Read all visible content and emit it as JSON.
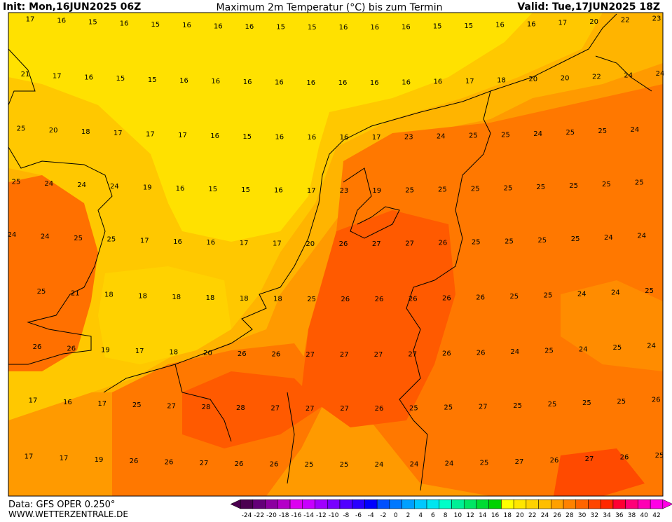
{
  "header": {
    "init": "Init: Mon,16JUN2025 06Z",
    "title": "Maximum 2m Temperatur (°C) bis zum Termin",
    "valid": "Valid: Tue,17JUN2025 18Z"
  },
  "footer": {
    "source": "Data: GFS OPER 0.250°",
    "site": "WWW.WETTERZENTRALE.DE"
  },
  "map": {
    "rows": [
      [
        17,
        16,
        15,
        16,
        15,
        16,
        16,
        16,
        15,
        15,
        16,
        16,
        16,
        15,
        15,
        16,
        16,
        17,
        20,
        22,
        23
      ],
      [
        21,
        17,
        16,
        15,
        15,
        16,
        16,
        16,
        16,
        16,
        16,
        16,
        16,
        16,
        17,
        18,
        20,
        20,
        22,
        24,
        24
      ],
      [
        25,
        20,
        18,
        17,
        17,
        17,
        16,
        15,
        16,
        16,
        16,
        17,
        23,
        24,
        25,
        25,
        24,
        25,
        25,
        24
      ],
      [
        25,
        24,
        24,
        24,
        19,
        16,
        15,
        15,
        16,
        17,
        23,
        19,
        25,
        25,
        25,
        25,
        25,
        25,
        25,
        25
      ],
      [
        24,
        24,
        25,
        25,
        17,
        16,
        16,
        17,
        17,
        20,
        26,
        27,
        27,
        26,
        25,
        25,
        25,
        25,
        24,
        24
      ],
      [
        25,
        21,
        18,
        18,
        18,
        18,
        18,
        18,
        25,
        26,
        26,
        26,
        26,
        26,
        25,
        25,
        24,
        24,
        25
      ],
      [
        26,
        26,
        19,
        17,
        18,
        20,
        26,
        26,
        27,
        27,
        27,
        27,
        26,
        26,
        24,
        25,
        24,
        25,
        24
      ],
      [
        17,
        16,
        17,
        25,
        27,
        28,
        28,
        27,
        27,
        27,
        26,
        25,
        25,
        27,
        25,
        25,
        25,
        25,
        26
      ],
      [
        17,
        17,
        19,
        26,
        26,
        27,
        26,
        26,
        25,
        25,
        24,
        24,
        24,
        25,
        27,
        26,
        27,
        26,
        25
      ]
    ]
  },
  "colorbar": {
    "ticks": [
      -24,
      -22,
      -20,
      -18,
      -16,
      -14,
      -12,
      -10,
      -8,
      -6,
      -4,
      -2,
      0,
      2,
      4,
      6,
      8,
      10,
      12,
      14,
      16,
      18,
      20,
      22,
      24,
      26,
      28,
      30,
      32,
      34,
      36,
      38,
      40,
      42
    ],
    "colors": [
      "#4b0050",
      "#640078",
      "#8c00a0",
      "#b400c8",
      "#dc00f0",
      "#c800ff",
      "#a000ff",
      "#7800ff",
      "#5000ff",
      "#2800ff",
      "#0000ff",
      "#0050ff",
      "#0078ff",
      "#00a0ff",
      "#00c8ff",
      "#00e6f0",
      "#00ffc8",
      "#00f096",
      "#00e664",
      "#00dc32",
      "#00d200",
      "#ffff00",
      "#ffe600",
      "#ffd200",
      "#ffbe00",
      "#ffa000",
      "#ff8200",
      "#ff6400",
      "#ff4600",
      "#ff2800",
      "#ff0032",
      "#ff0078",
      "#ff00b4",
      "#ff00e6"
    ]
  }
}
